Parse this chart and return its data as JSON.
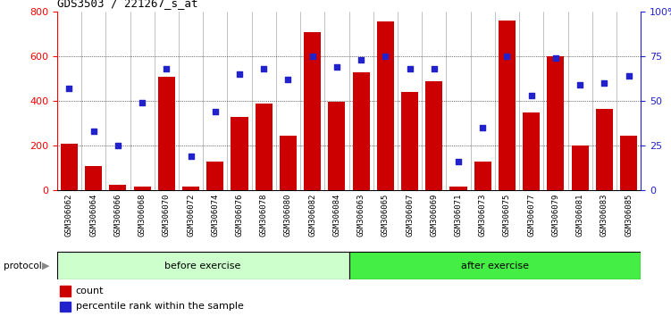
{
  "title": "GDS3503 / 221267_s_at",
  "samples": [
    "GSM306062",
    "GSM306064",
    "GSM306066",
    "GSM306068",
    "GSM306070",
    "GSM306072",
    "GSM306074",
    "GSM306076",
    "GSM306078",
    "GSM306080",
    "GSM306082",
    "GSM306084",
    "GSM306063",
    "GSM306065",
    "GSM306067",
    "GSM306069",
    "GSM306071",
    "GSM306073",
    "GSM306075",
    "GSM306077",
    "GSM306079",
    "GSM306081",
    "GSM306083",
    "GSM306085"
  ],
  "counts": [
    210,
    110,
    25,
    15,
    510,
    15,
    130,
    330,
    390,
    245,
    710,
    395,
    530,
    755,
    440,
    490,
    15,
    130,
    760,
    350,
    600,
    200,
    365,
    245
  ],
  "percentiles": [
    57,
    33,
    25,
    49,
    68,
    19,
    44,
    65,
    68,
    62,
    75,
    69,
    73,
    75,
    68,
    68,
    16,
    35,
    75,
    53,
    74,
    59,
    60,
    64
  ],
  "before_count": 12,
  "after_count": 12,
  "before_label": "before exercise",
  "after_label": "after exercise",
  "protocol_label": "protocol",
  "bar_color": "#cc0000",
  "dot_color": "#2222cc",
  "before_bg": "#ccffcc",
  "after_bg": "#44ee44",
  "ylim_left": [
    0,
    800
  ],
  "ylim_right": [
    0,
    100
  ],
  "yticks_left": [
    0,
    200,
    400,
    600,
    800
  ],
  "yticks_right": [
    0,
    25,
    50,
    75,
    100
  ],
  "legend_count": "count",
  "legend_pct": "percentile rank within the sample",
  "grid_lines": [
    200,
    400,
    600
  ],
  "tick_bg": "#cccccc",
  "sep_color": "#aaaaaa"
}
